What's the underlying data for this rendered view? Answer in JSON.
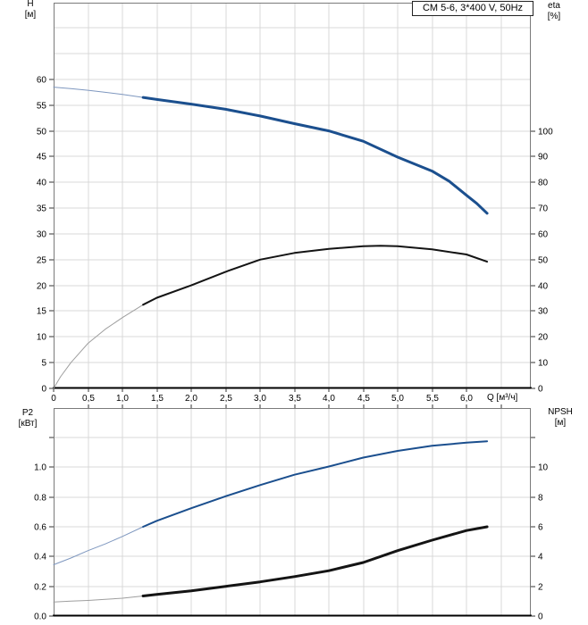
{
  "colors": {
    "blue_thick": "#1b4f8e",
    "blue_thin": "#7e97bf",
    "black_thick": "#141414",
    "black_thin": "#9e9e9e",
    "grid": "#d9d9d9",
    "border": "#7a7a7a",
    "axis_strong": "#000000",
    "tick": "#333333",
    "text": "#000000"
  },
  "chart_data": [
    {
      "type": "line",
      "id": "pump-performance",
      "title": "CM 5-6, 3*400 V, 50Hz",
      "x_axis": {
        "label": "Q [м³/ч]",
        "range": [
          0,
          6.935
        ],
        "grid_step": 0.5,
        "grid_max": 6.5,
        "ticks": [
          {
            "v": 0,
            "label": "0"
          },
          {
            "v": 0.5,
            "label": "0,5"
          },
          {
            "v": 1.0,
            "label": "1,0"
          },
          {
            "v": 1.5,
            "label": "1,5"
          },
          {
            "v": 2.0,
            "label": "2,0"
          },
          {
            "v": 2.5,
            "label": "2,5"
          },
          {
            "v": 3.0,
            "label": "3,0"
          },
          {
            "v": 3.5,
            "label": "3,5"
          },
          {
            "v": 4.0,
            "label": "4,0"
          },
          {
            "v": 4.5,
            "label": "4,5"
          },
          {
            "v": 5.0,
            "label": "5,0"
          },
          {
            "v": 5.5,
            "label": "5,5"
          },
          {
            "v": 6.0,
            "label": "6,0"
          }
        ]
      },
      "left_axis": {
        "label": "H",
        "unit": "[м]",
        "range": [
          0,
          74.9
        ],
        "grid_step": 5,
        "grid_max": 70,
        "ticks": [
          {
            "v": 0,
            "label": "0"
          },
          {
            "v": 5,
            "label": "5"
          },
          {
            "v": 10,
            "label": "10"
          },
          {
            "v": 15,
            "label": "15"
          },
          {
            "v": 20,
            "label": "20"
          },
          {
            "v": 25,
            "label": "25"
          },
          {
            "v": 30,
            "label": "30"
          },
          {
            "v": 35,
            "label": "35"
          },
          {
            "v": 40,
            "label": "40"
          },
          {
            "v": 45,
            "label": "45"
          },
          {
            "v": 50,
            "label": "50"
          },
          {
            "v": 55,
            "label": "55"
          },
          {
            "v": 60,
            "label": "60"
          }
        ]
      },
      "right_axis": {
        "label": "eta",
        "unit": "[%]",
        "range": [
          0,
          149.8
        ],
        "ticks": [
          {
            "v": 0,
            "label": "0"
          },
          {
            "v": 10,
            "label": "10"
          },
          {
            "v": 20,
            "label": "20"
          },
          {
            "v": 30,
            "label": "30"
          },
          {
            "v": 40,
            "label": "40"
          },
          {
            "v": 50,
            "label": "50"
          },
          {
            "v": 60,
            "label": "60"
          },
          {
            "v": 70,
            "label": "70"
          },
          {
            "v": 80,
            "label": "80"
          },
          {
            "v": 90,
            "label": "90"
          },
          {
            "v": 100,
            "label": "100"
          }
        ]
      },
      "series": [
        {
          "name": "H",
          "axis": "left",
          "color_role": "blue",
          "thin_width": 1,
          "thick_width": 3,
          "thick_from": 1.3,
          "points": [
            [
              0,
              58.5
            ],
            [
              0.25,
              58.2
            ],
            [
              0.5,
              57.9
            ],
            [
              0.75,
              57.5
            ],
            [
              1.0,
              57.1
            ],
            [
              1.3,
              56.5
            ],
            [
              1.5,
              56.1
            ],
            [
              2.0,
              55.2
            ],
            [
              2.5,
              54.2
            ],
            [
              3.0,
              52.9
            ],
            [
              3.5,
              51.4
            ],
            [
              4.0,
              50.0
            ],
            [
              4.5,
              48.0
            ],
            [
              5.0,
              44.9
            ],
            [
              5.5,
              42.2
            ],
            [
              5.75,
              40.2
            ],
            [
              6.0,
              37.5
            ],
            [
              6.15,
              35.9
            ],
            [
              6.3,
              34.0
            ]
          ]
        },
        {
          "name": "eta",
          "axis": "right",
          "color_role": "black",
          "thin_width": 1,
          "thick_width": 2,
          "thick_from": 1.3,
          "points": [
            [
              0,
              0
            ],
            [
              0.1,
              4.5
            ],
            [
              0.25,
              10
            ],
            [
              0.4,
              14.5
            ],
            [
              0.5,
              17.5
            ],
            [
              0.75,
              23
            ],
            [
              1.0,
              27.5
            ],
            [
              1.3,
              32.5
            ],
            [
              1.5,
              35.2
            ],
            [
              2.0,
              40.0
            ],
            [
              2.5,
              45.3
            ],
            [
              3.0,
              50.0
            ],
            [
              3.5,
              52.6
            ],
            [
              4.0,
              54.2
            ],
            [
              4.5,
              55.2
            ],
            [
              4.75,
              55.4
            ],
            [
              5.0,
              55.2
            ],
            [
              5.5,
              54.0
            ],
            [
              6.0,
              52.0
            ],
            [
              6.3,
              49.2
            ]
          ]
        }
      ]
    },
    {
      "type": "line",
      "id": "power-npsh",
      "x_axis": {
        "label": "",
        "range": [
          0,
          6.935
        ],
        "grid_step": 0.5,
        "grid_max": 6.5,
        "ticks": []
      },
      "left_axis": {
        "label": "P2",
        "unit": "[кВт]",
        "range": [
          0,
          1.398
        ],
        "grid_step": 0.2,
        "grid_max": 1.2,
        "ticks": [
          {
            "v": 0,
            "label": "0.0"
          },
          {
            "v": 0.2,
            "label": "0.2"
          },
          {
            "v": 0.4,
            "label": "0.4"
          },
          {
            "v": 0.6,
            "label": "0.6"
          },
          {
            "v": 0.8,
            "label": "0.8"
          },
          {
            "v": 1.0,
            "label": "1.0"
          },
          {
            "v": 1.2,
            "label": ""
          }
        ]
      },
      "right_axis": {
        "label": "NPSH",
        "unit": "[м]",
        "range": [
          0,
          13.98
        ],
        "ticks": [
          {
            "v": 0,
            "label": "0"
          },
          {
            "v": 2,
            "label": "2"
          },
          {
            "v": 4,
            "label": "4"
          },
          {
            "v": 6,
            "label": "6"
          },
          {
            "v": 8,
            "label": "8"
          },
          {
            "v": 10,
            "label": "10"
          },
          {
            "v": 12,
            "label": ""
          }
        ]
      },
      "series": [
        {
          "name": "P2",
          "axis": "left",
          "color_role": "blue",
          "thin_width": 1,
          "thick_width": 2,
          "thick_from": 1.3,
          "points": [
            [
              0,
              0.345
            ],
            [
              0.25,
              0.39
            ],
            [
              0.5,
              0.44
            ],
            [
              0.75,
              0.485
            ],
            [
              1.0,
              0.535
            ],
            [
              1.3,
              0.6
            ],
            [
              1.5,
              0.64
            ],
            [
              2.0,
              0.725
            ],
            [
              2.5,
              0.805
            ],
            [
              3.0,
              0.88
            ],
            [
              3.5,
              0.95
            ],
            [
              4.0,
              1.005
            ],
            [
              4.5,
              1.065
            ],
            [
              5.0,
              1.11
            ],
            [
              5.5,
              1.145
            ],
            [
              6.0,
              1.165
            ],
            [
              6.3,
              1.175
            ]
          ]
        },
        {
          "name": "NPSH",
          "axis": "right",
          "color_role": "black",
          "thin_width": 1,
          "thick_width": 3,
          "thick_from": 1.3,
          "points": [
            [
              0,
              0.95
            ],
            [
              0.25,
              1.0
            ],
            [
              0.5,
              1.05
            ],
            [
              0.75,
              1.12
            ],
            [
              1.0,
              1.2
            ],
            [
              1.3,
              1.35
            ],
            [
              1.5,
              1.45
            ],
            [
              2.0,
              1.7
            ],
            [
              2.5,
              2.0
            ],
            [
              3.0,
              2.3
            ],
            [
              3.5,
              2.65
            ],
            [
              4.0,
              3.05
            ],
            [
              4.5,
              3.6
            ],
            [
              5.0,
              4.4
            ],
            [
              5.5,
              5.1
            ],
            [
              6.0,
              5.75
            ],
            [
              6.3,
              6.0
            ]
          ]
        }
      ]
    }
  ]
}
